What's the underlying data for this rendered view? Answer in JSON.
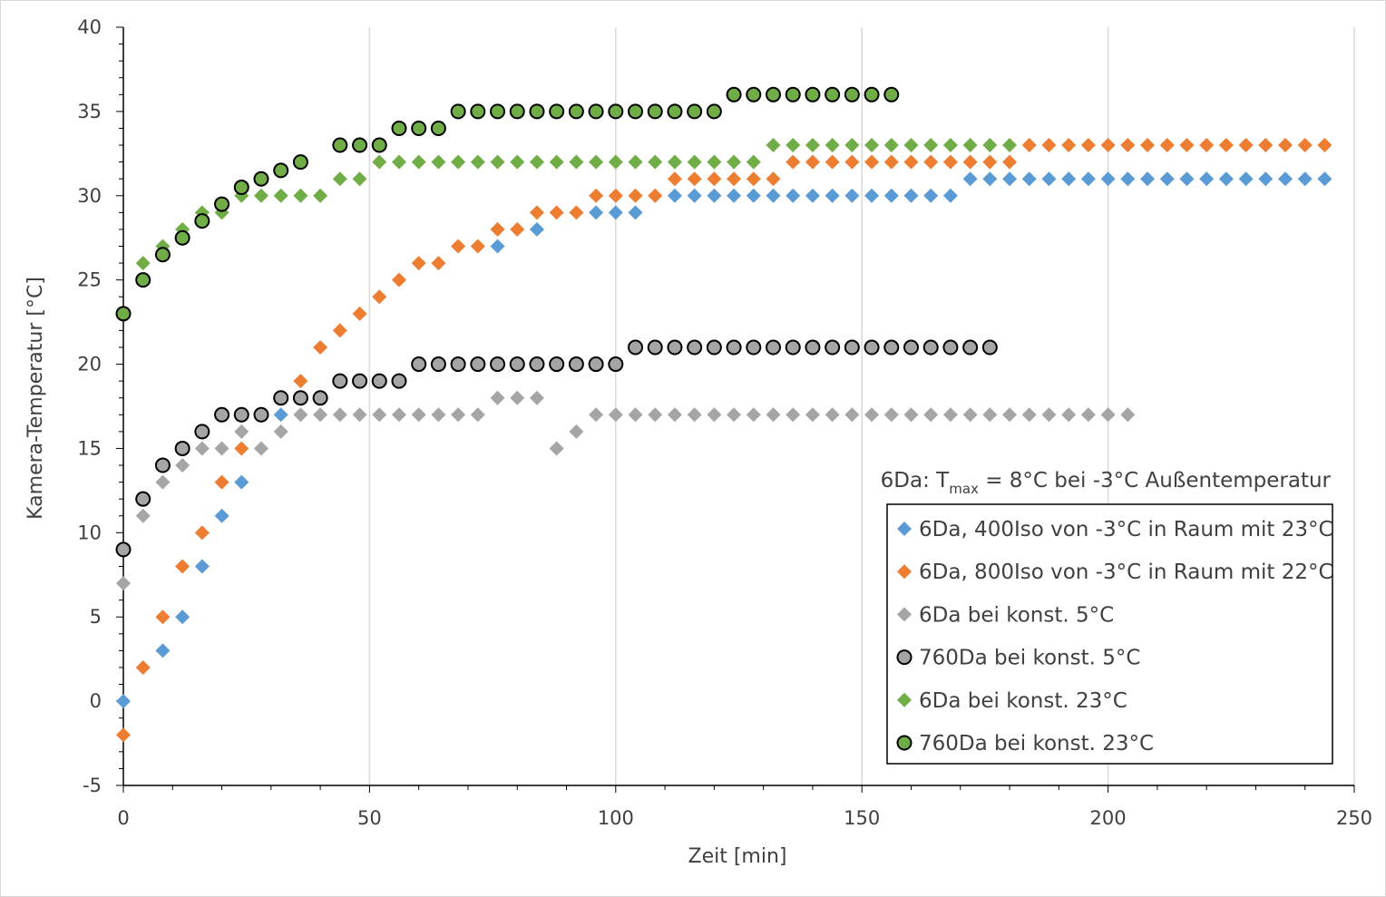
{
  "chart_data": {
    "type": "scatter",
    "title": "",
    "xlabel": "Zeit [min]",
    "ylabel": "Kamera-Temperatur [°C]",
    "xlim": [
      0,
      250
    ],
    "ylim": [
      -5,
      40
    ],
    "x_major_step": 50,
    "y_major_step": 5,
    "grid": "vertical major gridlines",
    "legend_position": "bottom-right",
    "annotation": {
      "prefix": "6Da: T",
      "subscript": "max",
      "suffix": " = 8°C bei -3°C Außentemperatur"
    },
    "series": [
      {
        "name": "6Da, 400Iso von -3°C in Raum mit 23°C",
        "marker": "diamond",
        "color": "#5b9bd5",
        "x": [
          0,
          8,
          12,
          16,
          20,
          24,
          32,
          76,
          84,
          96,
          100,
          104,
          112,
          116,
          120,
          124,
          128,
          132,
          136,
          140,
          144,
          148,
          152,
          156,
          160,
          164,
          168,
          172,
          176,
          180,
          184,
          188,
          192,
          196,
          200,
          204,
          208,
          212,
          216,
          220,
          224,
          228,
          232,
          236,
          240,
          244
        ],
        "y": [
          0,
          3,
          5,
          8,
          11,
          13,
          17,
          27,
          28,
          29,
          29,
          29,
          30,
          30,
          30,
          30,
          30,
          30,
          30,
          30,
          30,
          30,
          30,
          30,
          30,
          30,
          30,
          31,
          31,
          31,
          31,
          31,
          31,
          31,
          31,
          31,
          31,
          31,
          31,
          31,
          31,
          31,
          31,
          31,
          31,
          31
        ]
      },
      {
        "name": "6Da, 800Iso von -3°C in Raum mit 22°C",
        "marker": "diamond",
        "color": "#ed7d31",
        "x": [
          0,
          4,
          8,
          12,
          16,
          20,
          24,
          36,
          40,
          44,
          48,
          52,
          56,
          60,
          64,
          68,
          72,
          76,
          80,
          84,
          88,
          92,
          96,
          100,
          104,
          108,
          112,
          116,
          120,
          124,
          128,
          132,
          136,
          140,
          144,
          148,
          152,
          156,
          160,
          164,
          168,
          172,
          176,
          180,
          184,
          188,
          192,
          196,
          200,
          204,
          208,
          212,
          216,
          220,
          224,
          228,
          232,
          236,
          240,
          244
        ],
        "y": [
          -2,
          2,
          5,
          8,
          10,
          13,
          15,
          19,
          21,
          22,
          23,
          24,
          25,
          26,
          26,
          27,
          27,
          28,
          28,
          29,
          29,
          29,
          30,
          30,
          30,
          30,
          31,
          31,
          31,
          31,
          31,
          31,
          32,
          32,
          32,
          32,
          32,
          32,
          32,
          32,
          32,
          32,
          32,
          32,
          33,
          33,
          33,
          33,
          33,
          33,
          33,
          33,
          33,
          33,
          33,
          33,
          33,
          33,
          33,
          33
        ]
      },
      {
        "name": "6Da bei konst. 5°C",
        "marker": "diamond",
        "color": "#a5a5a5",
        "x": [
          0,
          4,
          8,
          12,
          16,
          20,
          24,
          28,
          32,
          36,
          40,
          44,
          48,
          52,
          56,
          60,
          64,
          68,
          72,
          76,
          80,
          84,
          88,
          92,
          96,
          100,
          104,
          108,
          112,
          116,
          120,
          124,
          128,
          132,
          136,
          140,
          144,
          148,
          152,
          156,
          160,
          164,
          168,
          172,
          176,
          180,
          184,
          188,
          192,
          196,
          200,
          204
        ],
        "y": [
          7,
          11,
          13,
          14,
          15,
          15,
          16,
          15,
          16,
          17,
          17,
          17,
          17,
          17,
          17,
          17,
          17,
          17,
          17,
          18,
          18,
          18,
          15,
          16,
          17,
          17,
          17,
          17,
          17,
          17,
          17,
          17,
          17,
          17,
          17,
          17,
          17,
          17,
          17,
          17,
          17,
          17,
          17,
          17,
          17,
          17,
          17,
          17,
          17,
          17,
          17,
          17
        ]
      },
      {
        "name": "760Da bei konst. 5°C",
        "marker": "circle",
        "color": "#a5a5a5",
        "x": [
          0,
          4,
          8,
          12,
          16,
          20,
          24,
          28,
          32,
          36,
          40,
          44,
          48,
          52,
          56,
          60,
          64,
          68,
          72,
          76,
          80,
          84,
          88,
          92,
          96,
          100,
          104,
          108,
          112,
          116,
          120,
          124,
          128,
          132,
          136,
          140,
          144,
          148,
          152,
          156,
          160,
          164,
          168,
          172,
          176
        ],
        "y": [
          9,
          12,
          14,
          15,
          16,
          17,
          17,
          17,
          18,
          18,
          18,
          19,
          19,
          19,
          19,
          20,
          20,
          20,
          20,
          20,
          20,
          20,
          20,
          20,
          20,
          20,
          21,
          21,
          21,
          21,
          21,
          21,
          21,
          21,
          21,
          21,
          21,
          21,
          21,
          21,
          21,
          21,
          21,
          21,
          21
        ]
      },
      {
        "name": "6Da bei konst. 23°C",
        "marker": "diamond",
        "color": "#70ad47",
        "x": [
          4,
          8,
          12,
          16,
          20,
          24,
          28,
          32,
          36,
          40,
          44,
          48,
          52,
          56,
          60,
          64,
          68,
          72,
          76,
          80,
          84,
          88,
          92,
          96,
          100,
          104,
          108,
          112,
          116,
          120,
          124,
          128,
          132,
          136,
          140,
          144,
          148,
          152,
          156,
          160,
          164,
          168,
          172,
          176,
          180
        ],
        "y": [
          26,
          27,
          28,
          29,
          29,
          30,
          30,
          30,
          30,
          30,
          31,
          31,
          32,
          32,
          32,
          32,
          32,
          32,
          32,
          32,
          32,
          32,
          32,
          32,
          32,
          32,
          32,
          32,
          32,
          32,
          32,
          32,
          33,
          33,
          33,
          33,
          33,
          33,
          33,
          33,
          33,
          33,
          33,
          33,
          33
        ]
      },
      {
        "name": "760Da bei konst. 23°C",
        "marker": "circle",
        "color": "#70ad47",
        "x": [
          0,
          4,
          8,
          12,
          16,
          20,
          24,
          28,
          32,
          36,
          44,
          48,
          52,
          56,
          60,
          64,
          68,
          72,
          76,
          80,
          84,
          88,
          92,
          96,
          100,
          104,
          108,
          112,
          116,
          120,
          124,
          128,
          132,
          136,
          140,
          144,
          148,
          152,
          156
        ],
        "y": [
          23,
          25,
          26.5,
          27.5,
          28.5,
          29.5,
          30.5,
          31,
          31.5,
          32,
          33,
          33,
          33,
          34,
          34,
          34,
          35,
          35,
          35,
          35,
          35,
          35,
          35,
          35,
          35,
          35,
          35,
          35,
          35,
          35,
          36,
          36,
          36,
          36,
          36,
          36,
          36,
          36,
          36
        ]
      }
    ]
  }
}
